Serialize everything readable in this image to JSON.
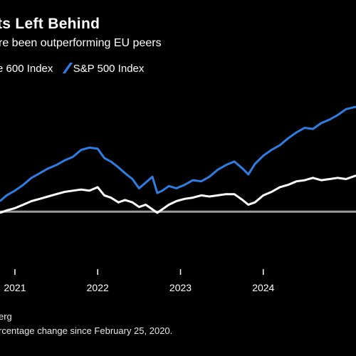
{
  "chart_data": {
    "type": "line",
    "title": "ts Left Behind",
    "subtitle": "re been outperforming EU peers",
    "ylabel": "",
    "xlabel": "",
    "x_tick_labels": [
      "2021",
      "2022",
      "2023",
      "2024"
    ],
    "x_ticks": [
      2021.0,
      2022.0,
      2023.0,
      2024.0
    ],
    "xlim": [
      2020.82,
      2025.12
    ],
    "ylim": [
      -20,
      90
    ],
    "baseline": 0,
    "grid": false,
    "legend_position": "top-left",
    "series": [
      {
        "name": "e 600 Index",
        "color": "#ffffff",
        "x": [
          2020.82,
          2020.9,
          2021.0,
          2021.1,
          2021.2,
          2021.3,
          2021.4,
          2021.5,
          2021.6,
          2021.7,
          2021.8,
          2021.9,
          2022.0,
          2022.08,
          2022.16,
          2022.25,
          2022.33,
          2022.42,
          2022.5,
          2022.58,
          2022.66,
          2022.72,
          2022.78,
          2022.86,
          2022.95,
          2023.05,
          2023.15,
          2023.25,
          2023.35,
          2023.45,
          2023.55,
          2023.65,
          2023.75,
          2023.82,
          2023.9,
          2024.0,
          2024.1,
          2024.2,
          2024.3,
          2024.4,
          2024.5,
          2024.6,
          2024.7,
          2024.8,
          2024.9,
          2025.0,
          2025.12
        ],
        "y": [
          -1,
          1,
          3,
          6,
          9,
          11,
          13,
          15,
          17,
          18,
          19,
          18,
          21,
          14,
          12,
          8,
          10,
          8,
          4,
          6,
          2,
          -1,
          2,
          6,
          9,
          11,
          12,
          14,
          13,
          14,
          15,
          15,
          10,
          6,
          8,
          14,
          17,
          21,
          23,
          26,
          27,
          29,
          27,
          28,
          29,
          28,
          31
        ]
      },
      {
        "name": "S&P 500 Index",
        "color": "#2f7de1",
        "x": [
          2020.82,
          2020.9,
          2021.0,
          2021.1,
          2021.2,
          2021.3,
          2021.4,
          2021.5,
          2021.6,
          2021.7,
          2021.8,
          2021.9,
          2022.0,
          2022.08,
          2022.16,
          2022.25,
          2022.33,
          2022.42,
          2022.5,
          2022.58,
          2022.66,
          2022.72,
          2022.78,
          2022.86,
          2022.95,
          2023.05,
          2023.15,
          2023.25,
          2023.35,
          2023.45,
          2023.55,
          2023.65,
          2023.75,
          2023.82,
          2023.9,
          2024.0,
          2024.1,
          2024.2,
          2024.3,
          2024.4,
          2024.5,
          2024.6,
          2024.7,
          2024.8,
          2024.9,
          2025.0,
          2025.12
        ],
        "y": [
          9,
          14,
          18,
          23,
          29,
          33,
          37,
          40,
          44,
          47,
          53,
          55,
          54,
          46,
          43,
          38,
          33,
          28,
          20,
          25,
          30,
          16,
          18,
          22,
          20,
          23,
          27,
          26,
          30,
          36,
          40,
          43,
          37,
          32,
          41,
          48,
          53,
          57,
          63,
          68,
          72,
          71,
          76,
          79,
          83,
          88,
          90
        ]
      }
    ]
  },
  "footer": {
    "source": "erg",
    "note": "rcentage change since February 25, 2020."
  }
}
